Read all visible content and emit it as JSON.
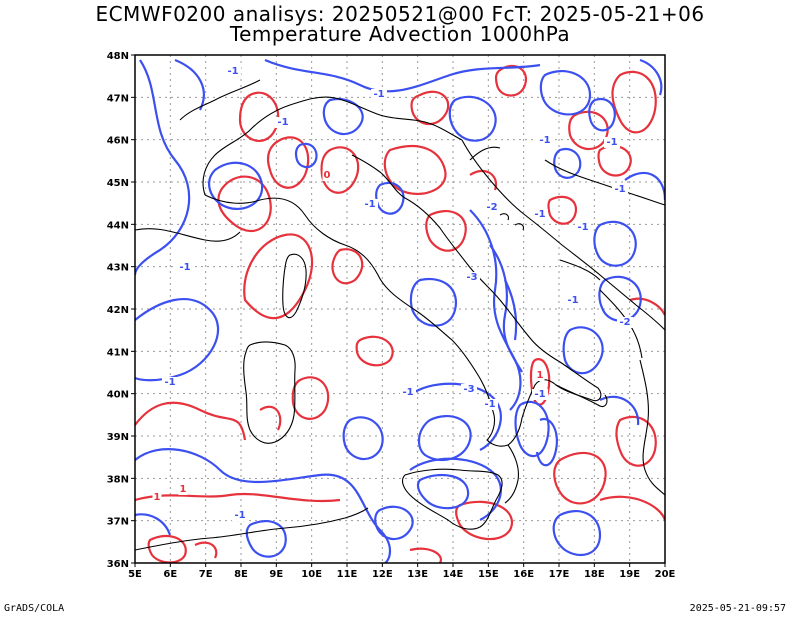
{
  "header": {
    "title_line1": "ECMWF0200 analisys: 20250521@00 FcT: 2025-05-21+06",
    "title_line2": "Temperature Advection 1000hPa"
  },
  "footer": {
    "left": "GrADS/COLA",
    "right": "2025-05-21-09:57"
  },
  "axes": {
    "lon_labels": [
      "5E",
      "6E",
      "7E",
      "8E",
      "9E",
      "10E",
      "11E",
      "12E",
      "13E",
      "14E",
      "15E",
      "16E",
      "17E",
      "18E",
      "19E",
      "20E"
    ],
    "lat_labels": [
      "48N",
      "47N",
      "46N",
      "45N",
      "44N",
      "43N",
      "42N",
      "41N",
      "40N",
      "39N",
      "38N",
      "37N",
      "36N"
    ],
    "grid": "dotted"
  },
  "colors": {
    "negative": "#3c50f0",
    "positive": "#e6323c",
    "coast": "#000000",
    "grid": "#999999"
  },
  "contour_labels": {
    "negative": [
      "-1",
      "-1",
      "-1",
      "-1",
      "-1",
      "-1",
      "-2",
      "-1",
      "-1",
      "-1",
      "-3",
      "-1",
      "-2",
      "-3",
      "-1",
      "-1",
      "-1",
      "-1",
      "-1",
      "-1"
    ],
    "positive": [
      "0",
      "1",
      "1",
      "1"
    ]
  }
}
